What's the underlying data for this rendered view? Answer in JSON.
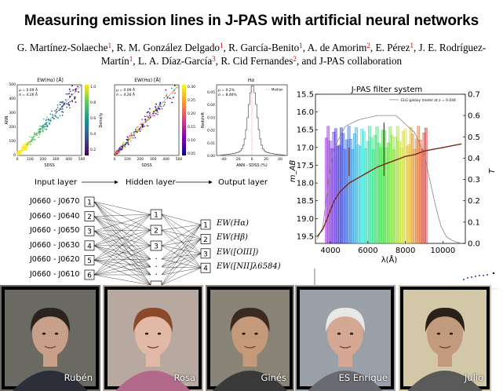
{
  "header": {
    "title": "Measuring emission lines in J-PAS with artificial neural networks",
    "authors": [
      {
        "name": "G. Martínez-Solaeche",
        "aff": "1",
        "sep": ", "
      },
      {
        "name": "R. M. González Delgado",
        "aff": "1",
        "sep": ", "
      },
      {
        "name": "R. García-Benito",
        "aff": "1",
        "sep": ", "
      },
      {
        "name": "A. de Amorim",
        "aff": "2",
        "sep": ", "
      },
      {
        "name": "E. Pérez",
        "aff": "1",
        "sep": ", "
      },
      {
        "name": "J. E. Rodríguez-Martín",
        "aff": "1",
        "sep": ", "
      },
      {
        "name": "L. A. Díaz-García",
        "aff": "3",
        "sep": ", "
      },
      {
        "name": "R. Cid Fernandes",
        "aff": "2",
        "sep": ", and J-PAS collaboration"
      }
    ]
  },
  "scatter1": {
    "title": "EW(Hα) [Å]",
    "xlabel": "SDSS",
    "ylabel": "ANN",
    "mu": "μ = 0.09 Å",
    "sigma": "σ = 4.26 Å",
    "cbar_label": "Density",
    "cbar_ticks": [
      "1.0",
      "0.8",
      "0.6",
      "0.4",
      "0.2"
    ],
    "ticks": [
      "0",
      "100",
      "200",
      "300",
      "400",
      "500"
    ]
  },
  "scatter2": {
    "title": "EW(Hα) [Å]",
    "xlabel": "SDSS",
    "mu": "μ = 0.09 Å",
    "sigma": "σ = 4.26 Å",
    "cbar_label": "Redshift",
    "cbar_ticks": [
      "0.30",
      "0.25",
      "0.20",
      "0.15",
      "0.10",
      "0.05"
    ],
    "ticks": [
      "0",
      "100",
      "200",
      "300",
      "400",
      "500"
    ]
  },
  "hist": {
    "title": "Hα",
    "xlabel": "ANN - SDSS (%)",
    "mu": "μ = 0.2%",
    "sigma": "σ = 8.46%",
    "legend": "Median",
    "yticks": [
      "0.05",
      "0.04",
      "0.03",
      "0.02",
      "0.01",
      "0.00"
    ],
    "xticks": [
      "-40",
      "-20",
      "0",
      "20",
      "40"
    ]
  },
  "nn": {
    "input_layer": "Input layer",
    "hidden_layer": "Hidden layer",
    "output_layer": "Output layer",
    "inputs": [
      "J0660 - J0670",
      "J0660 - J0640",
      "J0660 - J0650",
      "J0660 - J0630",
      "J0660 - J0620",
      "J0660 - J0610"
    ],
    "input_nums": [
      "1",
      "2",
      "3",
      "4",
      "5",
      "6"
    ],
    "hidden_nums": [
      "1",
      "2",
      "3"
    ],
    "hidden_dots": "·",
    "outputs": [
      "EW(Hα)",
      "EW(Hβ)",
      "EW([OIII])",
      "EW([NII]λ6584)"
    ],
    "output_nums": [
      "1",
      "2",
      "3",
      "4"
    ]
  },
  "chart_data": {
    "type": "line",
    "title": "J-PAS filter system",
    "xlabel": "λ(Å)",
    "ylabel": "m_AB",
    "y2label": "T",
    "legend": "ELG galaxy model at z = 0.044",
    "xlim": [
      3200,
      11200
    ],
    "ylim": [
      19.7,
      15.5
    ],
    "y2lim": [
      0.0,
      0.7
    ],
    "xticks": [
      4000,
      6000,
      8000,
      10000
    ],
    "yticks": [
      15.5,
      16.0,
      16.5,
      17.0,
      17.5,
      18.0,
      18.5,
      19.0,
      19.5
    ],
    "y2ticks": [
      0.0,
      0.1,
      0.2,
      0.3,
      0.4,
      0.5,
      0.6,
      0.7
    ],
    "filters": {
      "start": 3780,
      "end": 9100,
      "count": 54,
      "peak_T": 0.55
    },
    "spectrum": {
      "x": [
        3300,
        3600,
        3900,
        4200,
        4500,
        5000,
        5500,
        6000,
        6500,
        7000,
        7500,
        8000,
        8500,
        9000,
        9500,
        10000,
        10500,
        11000
      ],
      "y": [
        19.5,
        19.3,
        18.9,
        18.5,
        18.25,
        18.0,
        17.85,
        17.7,
        17.55,
        17.45,
        17.35,
        17.25,
        17.2,
        17.1,
        17.05,
        17.0,
        16.95,
        16.9
      ]
    },
    "transmission_curve": {
      "x": [
        3300,
        3600,
        3900,
        4200,
        4800,
        5500,
        6500,
        7500,
        8500,
        9000,
        9300,
        9600,
        9900,
        10200,
        10600,
        11000
      ],
      "y": [
        0.02,
        0.08,
        0.3,
        0.45,
        0.55,
        0.58,
        0.6,
        0.6,
        0.52,
        0.42,
        0.3,
        0.18,
        0.08,
        0.03,
        0.01,
        0.0
      ]
    },
    "emission_lines": [
      {
        "x": 5000,
        "dy": 0.8
      },
      {
        "x": 6860,
        "dy": 1.5
      }
    ]
  },
  "participants": [
    {
      "name": "Rubén",
      "bg": "#6b6a62",
      "skin": "#c8a08a",
      "hair": "#2a2320",
      "shirt": "#2c2f3a"
    },
    {
      "name": "Rosa",
      "bg": "#b8a9a0",
      "skin": "#e2b9a6",
      "hair": "#8a4a2a",
      "shirt": "#b36a8a"
    },
    {
      "name": "Ginés",
      "bg": "#8a8478",
      "skin": "#c49a7a",
      "hair": "#3a2a20",
      "shirt": "#3a3a3a"
    },
    {
      "name": "ES Enrique",
      "bg": "#9aa0a8",
      "skin": "#d4a892",
      "hair": "#e8e8e6",
      "shirt": "#6a6a72"
    },
    {
      "name": "Julio",
      "bg": "#d2c8a8",
      "skin": "#c29a7e",
      "hair": "#2a201a",
      "shirt": "#5a5a5a"
    }
  ]
}
